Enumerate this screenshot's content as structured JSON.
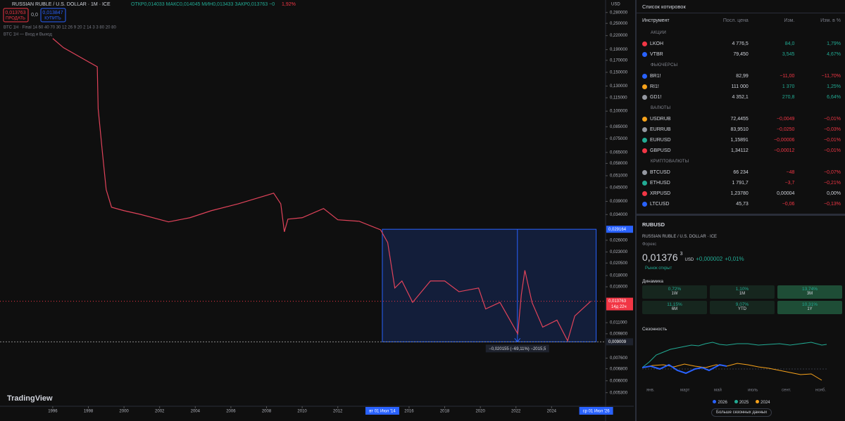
{
  "header": {
    "title": "RUSSIAN RUBLE / U.S. DOLLAR · 1M · ICE",
    "ohlc": "ОТКР0,014033 МАКС0,014045 МИН0,013433 ЗАКР0,013763 −0",
    "change_pct": "1,92%",
    "sell_price": "0,013763",
    "sell_label": "ПРОДАТЬ",
    "spread": "0,0",
    "buy_price": "0,013847",
    "buy_label": "КУПИТЬ",
    "indicator1": "BTC 1H · Final 14 60 40 70 30 12 26 9 20 2 14 3 3 80 20 80",
    "indicator2": "BTC 1H — Вход и Выход",
    "logo": "TradingView",
    "currency": "USD"
  },
  "chart_data": {
    "type": "line",
    "log_scale": true,
    "color": "#e0435a",
    "x": [
      1996.0,
      1996.6,
      1997.8,
      1998.5,
      1998.55,
      1998.8,
      1999.0,
      1999.3,
      2000.0,
      2000.9,
      2002.5,
      2003.7,
      2004.9,
      2006.4,
      2008.4,
      2008.8,
      2009.0,
      2009.2,
      2010.0,
      2011.2,
      2012.0,
      2013.2,
      2014.4,
      2014.8,
      2015.2,
      2015.6,
      2016.2,
      2017.2,
      2018.0,
      2018.8,
      2019.9,
      2020.3,
      2021.1,
      2022.1,
      2022.3,
      2022.5,
      2022.9,
      2023.5,
      2024.3,
      2024.9,
      2025.3,
      2026.2
    ],
    "values": [
      0.2135,
      0.194,
      0.171,
      0.159,
      0.1025,
      0.0636,
      0.0441,
      0.0367,
      0.0354,
      0.0341,
      0.0315,
      0.0329,
      0.0354,
      0.038,
      0.0425,
      0.038,
      0.0284,
      0.0324,
      0.0329,
      0.0362,
      0.0322,
      0.0317,
      0.029,
      0.0254,
      0.0158,
      0.017,
      0.0136,
      0.017,
      0.017,
      0.0152,
      0.0158,
      0.0127,
      0.0136,
      0.0098,
      0.0147,
      0.019,
      0.0136,
      0.0105,
      0.0113,
      0.0091,
      0.0118,
      0.013763
    ],
    "xlim": [
      1993.04,
      2027.03
    ],
    "ylim": [
      0.0046,
      0.319
    ],
    "xticks": [
      1996,
      1998,
      2000,
      2002,
      2004,
      2006,
      2008,
      2010,
      2012,
      2016,
      2018,
      2020,
      2022,
      2024
    ],
    "yticks": [
      {
        "value": 0.28,
        "label": "0,280000"
      },
      {
        "value": 0.25,
        "label": "0,250000"
      },
      {
        "value": 0.22,
        "label": "0,220000"
      },
      {
        "value": 0.19,
        "label": "0,190000"
      },
      {
        "value": 0.17,
        "label": "0,170000"
      },
      {
        "value": 0.15,
        "label": "0,150000"
      },
      {
        "value": 0.13,
        "label": "0,130000"
      },
      {
        "value": 0.115,
        "label": "0,115000"
      },
      {
        "value": 0.1,
        "label": "0,100000"
      },
      {
        "value": 0.085,
        "label": "0,085000"
      },
      {
        "value": 0.075,
        "label": "0,075000"
      },
      {
        "value": 0.065,
        "label": "0,065000"
      },
      {
        "value": 0.058,
        "label": "0,058000"
      },
      {
        "value": 0.051,
        "label": "0,051000"
      },
      {
        "value": 0.045,
        "label": "0,045000"
      },
      {
        "value": 0.039,
        "label": "0,039000"
      },
      {
        "value": 0.034,
        "label": "0,034000"
      },
      {
        "value": 0.026,
        "label": "0,026000"
      },
      {
        "value": 0.023,
        "label": "0,023000"
      },
      {
        "value": 0.0205,
        "label": "0,020500"
      },
      {
        "value": 0.018,
        "label": "0,018000"
      },
      {
        "value": 0.016,
        "label": "0,016000"
      },
      {
        "value": 0.011,
        "label": "0,011000"
      },
      {
        "value": 0.0098,
        "label": "0,009800"
      },
      {
        "value": 0.0076,
        "label": "0,007600"
      },
      {
        "value": 0.0068,
        "label": "0,006800"
      },
      {
        "value": 0.006,
        "label": "0,006000"
      },
      {
        "value": 0.0053,
        "label": "0,005300"
      }
    ],
    "current": {
      "value": 0.013763,
      "label": "0,013763",
      "countdown": "14д 22ч"
    },
    "measure": {
      "top": {
        "value": 0.029164,
        "label": "0,029164"
      },
      "bottom": {
        "value": 0.009009,
        "label": "0,009009"
      },
      "from_x": 2014.5,
      "to_x": 2026.5,
      "label": "−0,020155 (−69,11%) −2015,5",
      "from_label": "вт 01 Июл '14",
      "to_label": "ср 01 Июл '26"
    }
  },
  "watchlist": {
    "title": "Список котировок",
    "columns": [
      "Инструмент",
      "Посл. цена",
      "Изм.",
      "Изм. в %"
    ],
    "sections": [
      {
        "title": "АКЦИИ",
        "rows": [
          [
            "LKOH",
            "4 776,5",
            "84,0",
            "1,79%"
          ],
          [
            "VTBR",
            "79,450",
            "3,545",
            "4,67%"
          ]
        ]
      },
      {
        "title": "ФЬЮЧЕРСЫ",
        "rows": [
          [
            "BR1!",
            "82,99",
            "−11,00",
            "−11,70%"
          ],
          [
            "RI1!",
            "111 000",
            "1 370",
            "1,25%"
          ],
          [
            "GD1!",
            "4 352,1",
            "270,8",
            "6,64%"
          ]
        ]
      },
      {
        "title": "ВАЛЮТЫ",
        "rows": [
          [
            "USDRUB",
            "72,4455",
            "−0,0049",
            "−0,01%"
          ],
          [
            "EURRUB",
            "83,9510",
            "−0,0250",
            "−0,03%"
          ],
          [
            "EURUSD",
            "1,15891",
            "−0,00006",
            "−0,01%"
          ],
          [
            "GBPUSD",
            "1,34112",
            "−0,00012",
            "−0,01%"
          ]
        ]
      },
      {
        "title": "КРИПТОВАЛЮТЫ",
        "rows": [
          [
            "BTCUSD",
            "66 234",
            "−48",
            "−0,07%"
          ],
          [
            "ETHUSD",
            "1 791,7",
            "−3,7",
            "−0,21%"
          ],
          [
            "XRPUSD",
            "1,23780",
            "0,00004",
            "0,00%"
          ],
          [
            "LTCUSD",
            "45,73",
            "−0,06",
            "−0,13%"
          ]
        ]
      }
    ]
  },
  "details": {
    "symbol": "RUBUSD",
    "name": "RUSSIAN RUBLE / U.S. DOLLAR · ICE",
    "kind": "Форекс",
    "price": "0,01376",
    "price_small": "3",
    "currency": "USD",
    "change": "+0,000002",
    "change_pct": "+0,01%",
    "status": "Рынок открыт",
    "performance_title": "Динамика",
    "performance": [
      [
        "0,72%",
        "1W"
      ],
      [
        "1,10%",
        "1M"
      ],
      [
        "13,74%",
        "3M"
      ],
      [
        "11,15%",
        "6M"
      ],
      [
        "9,07%",
        "YTD"
      ],
      [
        "10,31%",
        "1Y"
      ]
    ],
    "seasonality_title": "Сезонность",
    "months": [
      "янв.",
      "март",
      "май",
      "июль",
      "сент.",
      "нояб."
    ],
    "years": [
      "2026",
      "2025",
      "2024"
    ],
    "more": "Больше сезонных данных"
  }
}
